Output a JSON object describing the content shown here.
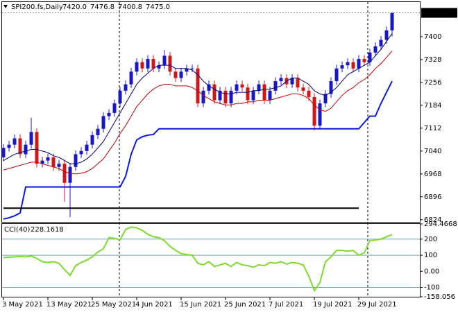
{
  "chart_data": [
    {
      "type": "candlestick",
      "title": "SPI200.fs,Daily",
      "last_bar_labels": [
        "7420.0",
        "7476.8",
        "7400.8",
        "7475.0"
      ],
      "x": [
        "3 May 2021",
        null,
        null,
        null,
        null,
        null,
        null,
        null,
        "13 May 2021",
        null,
        null,
        null,
        null,
        null,
        null,
        null,
        "25 May 2021",
        null,
        null,
        null,
        null,
        null,
        null,
        null,
        "4 Jun 2021",
        null,
        null,
        null,
        null,
        null,
        null,
        null,
        "15 Jun 2021",
        null,
        null,
        null,
        null,
        null,
        null,
        null,
        "25 Jun 2021",
        null,
        null,
        null,
        null,
        null,
        null,
        null,
        "7 Jul 2021",
        null,
        null,
        null,
        null,
        null,
        null,
        null,
        "19 Jul 2021",
        null,
        null,
        null,
        null,
        null,
        null,
        null,
        "29 Jul 2021",
        null,
        null,
        null,
        null,
        null,
        null
      ],
      "open": [
        7020,
        7050,
        7060,
        7080,
        7030,
        7060,
        7100,
        7000,
        7010,
        7020,
        6990,
        7000,
        6940,
        6990,
        7030,
        7040,
        7060,
        7090,
        7110,
        7150,
        7160,
        7190,
        7230,
        7250,
        7290,
        7320,
        7300,
        7330,
        7300,
        7310,
        7340,
        7290,
        7270,
        7290,
        7300,
        7300,
        7190,
        7230,
        7250,
        7200,
        7230,
        7190,
        7230,
        7250,
        7240,
        7200,
        7230,
        7250,
        7200,
        7230,
        7260,
        7270,
        7250,
        7270,
        7240,
        7230,
        7210,
        7120,
        7190,
        7220,
        7260,
        7300,
        7310,
        7320,
        7300,
        7330,
        7320,
        7350,
        7370,
        7390,
        7420.0
      ],
      "high": [
        7062,
        7072,
        7092,
        7092,
        7072,
        7145,
        7112,
        7022,
        7032,
        7032,
        7012,
        7012,
        7002,
        7042,
        7052,
        7072,
        7102,
        7122,
        7162,
        7172,
        7202,
        7242,
        7262,
        7302,
        7332,
        7332,
        7342,
        7342,
        7322,
        7358,
        7352,
        7302,
        7302,
        7312,
        7312,
        7312,
        7242,
        7262,
        7262,
        7242,
        7242,
        7242,
        7262,
        7262,
        7252,
        7242,
        7262,
        7262,
        7242,
        7272,
        7282,
        7282,
        7282,
        7282,
        7252,
        7242,
        7222,
        7202,
        7232,
        7272,
        7312,
        7322,
        7332,
        7332,
        7342,
        7342,
        7362,
        7382,
        7402,
        7432,
        7476.8
      ],
      "low": [
        7008,
        7038,
        7048,
        7018,
        7018,
        7048,
        6988,
        6988,
        6998,
        6978,
        6978,
        6880,
        6832,
        6978,
        7018,
        7028,
        7048,
        7078,
        7098,
        7138,
        7148,
        7178,
        7218,
        7238,
        7278,
        7288,
        7288,
        7288,
        7288,
        7298,
        7278,
        7258,
        7258,
        7278,
        7288,
        7178,
        7178,
        7218,
        7188,
        7188,
        7178,
        7178,
        7218,
        7228,
        7188,
        7188,
        7218,
        7188,
        7188,
        7218,
        7248,
        7238,
        7238,
        7228,
        7218,
        7198,
        7105,
        7108,
        7178,
        7208,
        7248,
        7288,
        7298,
        7288,
        7288,
        7308,
        7308,
        7338,
        7358,
        7378,
        7400.8
      ],
      "close": [
        7050,
        7060,
        7080,
        7030,
        7060,
        7100,
        7000,
        7010,
        7020,
        6990,
        7000,
        6940,
        6990,
        7030,
        7040,
        7060,
        7090,
        7110,
        7150,
        7160,
        7190,
        7230,
        7250,
        7290,
        7320,
        7300,
        7330,
        7300,
        7310,
        7340,
        7290,
        7270,
        7290,
        7300,
        7300,
        7190,
        7230,
        7250,
        7200,
        7230,
        7190,
        7230,
        7250,
        7240,
        7200,
        7230,
        7250,
        7200,
        7230,
        7260,
        7270,
        7250,
        7270,
        7240,
        7230,
        7210,
        7120,
        7190,
        7220,
        7260,
        7300,
        7310,
        7320,
        7300,
        7330,
        7320,
        7350,
        7370,
        7390,
        7420,
        7475.0
      ],
      "up_color": "#1818c8",
      "down_color": "#d01818",
      "series": [
        {
          "color": "#000080",
          "line_width": 1,
          "values": [
            7010,
            7020,
            7030,
            7035,
            7040,
            7045,
            7045,
            7040,
            7035,
            7025,
            7020,
            7010,
            7000,
            7000,
            7005,
            7015,
            7030,
            7050,
            7070,
            7100,
            7130,
            7160,
            7190,
            7220,
            7250,
            7270,
            7285,
            7300,
            7310,
            7310,
            7310,
            7300,
            7300,
            7300,
            7295,
            7280,
            7260,
            7245,
            7235,
            7225,
            7220,
            7220,
            7225,
            7225,
            7225,
            7230,
            7230,
            7235,
            7235,
            7240,
            7245,
            7260,
            7270,
            7270,
            7260,
            7250,
            7230,
            7220,
            7215,
            7225,
            7240,
            7260,
            7280,
            7290,
            7300,
            7310,
            7320,
            7340,
            7360,
            7385,
            7410
          ]
        },
        {
          "color": "#c00000",
          "line_width": 1,
          "values": [
            6980,
            6985,
            6990,
            6995,
            7000,
            7005,
            7005,
            7000,
            6995,
            6990,
            6985,
            6975,
            6970,
            6968,
            6970,
            6975,
            6985,
            7000,
            7015,
            7040,
            7065,
            7095,
            7120,
            7150,
            7180,
            7200,
            7220,
            7235,
            7245,
            7250,
            7250,
            7245,
            7245,
            7245,
            7240,
            7230,
            7215,
            7205,
            7195,
            7190,
            7185,
            7185,
            7190,
            7190,
            7195,
            7195,
            7200,
            7200,
            7200,
            7205,
            7210,
            7215,
            7220,
            7220,
            7215,
            7205,
            7185,
            7170,
            7165,
            7175,
            7195,
            7215,
            7230,
            7240,
            7255,
            7265,
            7280,
            7300,
            7315,
            7335,
            7355
          ]
        },
        {
          "color": "#0a1adc",
          "line_width": 2,
          "values": [
            6826,
            6830,
            6836,
            6845,
            6927,
            6927,
            6927,
            6927,
            6927,
            6927,
            6927,
            6927,
            6927,
            6927,
            6927,
            6927,
            6927,
            6927,
            6927,
            6927,
            6927,
            6927,
            6960,
            7030,
            7075,
            7085,
            7090,
            7092,
            7110,
            7110,
            7110,
            7110,
            7110,
            7110,
            7110,
            7110,
            7110,
            7110,
            7110,
            7110,
            7110,
            7110,
            7110,
            7110,
            7110,
            7110,
            7110,
            7110,
            7110,
            7110,
            7110,
            7110,
            7110,
            7110,
            7110,
            7110,
            7110,
            7110,
            7110,
            7110,
            7110,
            7110,
            7110,
            7110,
            7110,
            7130,
            7150,
            7150,
            7190,
            7225,
            7260
          ]
        },
        {
          "color": "#000000",
          "line_width": 2,
          "values": [
            6860,
            6860,
            6860,
            6860,
            6860,
            6860,
            6860,
            6860,
            6860,
            6860,
            6860,
            6860,
            6860,
            6860,
            6860,
            6860,
            6860,
            6860,
            6860,
            6860,
            6860,
            6860,
            6860,
            6860,
            6860,
            6860,
            6860,
            6860,
            6860,
            6860,
            6860,
            6860,
            6860,
            6860,
            6860,
            6860,
            6860,
            6860,
            6860,
            6860,
            6860,
            6860,
            6860,
            6860,
            6860,
            6860,
            6860,
            6860,
            6860,
            6860,
            6860,
            6860,
            6860,
            6860,
            6860,
            6860,
            6860,
            6860,
            6860,
            6860,
            6860,
            6860,
            6860,
            6860,
            6860,
            null,
            null,
            null,
            null,
            null,
            null
          ]
        }
      ],
      "ylim": [
        6817,
        7509
      ],
      "yticks": [
        7400,
        7328,
        7256,
        7184,
        7112,
        7040,
        6968,
        6896,
        6824
      ]
    },
    {
      "type": "line",
      "title": "CCI(40)",
      "series": [
        {
          "color": "#7cdc2c",
          "line_width": 2,
          "values": [
            85,
            88,
            90,
            92,
            90,
            95,
            80,
            60,
            55,
            60,
            50,
            10,
            -25,
            35,
            55,
            70,
            90,
            120,
            140,
            210,
            205,
            195,
            260,
            275,
            270,
            255,
            230,
            215,
            210,
            190,
            155,
            130,
            110,
            105,
            100,
            50,
            40,
            60,
            30,
            40,
            50,
            30,
            55,
            40,
            35,
            25,
            40,
            35,
            55,
            50,
            60,
            45,
            55,
            50,
            40,
            -30,
            -120,
            -70,
            60,
            90,
            130,
            130,
            125,
            130,
            100,
            115,
            190,
            195,
            200,
            215,
            228.1618
          ]
        }
      ],
      "ylim": [
        -158.056,
        294.4668
      ],
      "yticks": [
        294.4668,
        200,
        100,
        {
          "value": 0,
          "label": "0.00"
        },
        -100,
        -158.056
      ],
      "levels": [
        200,
        100,
        -100
      ],
      "level_color": "#6aa6b4"
    }
  ]
}
